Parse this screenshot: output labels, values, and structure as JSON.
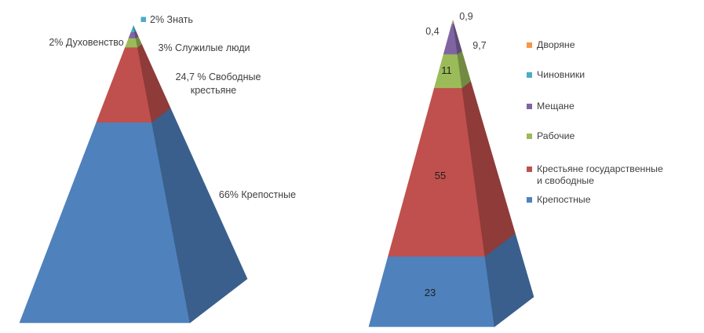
{
  "page": {
    "background": "#ffffff",
    "text_color": "#3F3F3F",
    "inside_label_color": "#1F1F1F"
  },
  "chart_data": [
    {
      "type": "pyramid_3d",
      "title": "",
      "description": "3D pyramid of social estates, segments top to bottom",
      "legend_position": "none",
      "unit": "%",
      "segments": [
        {
          "name": "Знать",
          "value": 2,
          "color": "#4BACC6",
          "label": "2% Знать",
          "label_marker": true
        },
        {
          "name": "Духовенство",
          "value": 2,
          "color": "#8064A2",
          "label": "2% Духовенство"
        },
        {
          "name": "Служилые люди",
          "value": 3,
          "color": "#9BBB59",
          "label": "3% Служилые люди"
        },
        {
          "name": "Свободные крестьяне",
          "value": 24.7,
          "color": "#C0504D",
          "label": "24,7 % Свободные крестьяне",
          "label_lines": [
            "24,7 % Свободные",
            "крестьяне"
          ]
        },
        {
          "name": "Крепостные",
          "value": 66,
          "color": "#4F81BD",
          "label": "66% Крепостные"
        }
      ]
    },
    {
      "type": "pyramid_3d",
      "title": "",
      "description": "3D pyramid of social groups with value labels, legend at right",
      "legend_position": "right",
      "segments": [
        {
          "name": "Дворяне",
          "value": 0.9,
          "color": "#F79646",
          "label": "0,9"
        },
        {
          "name": "Чиновники",
          "value": 0.4,
          "color": "#4BACC6",
          "label": "0,4"
        },
        {
          "name": "Мещане",
          "value": 9.7,
          "color": "#8064A2",
          "label": "9,7"
        },
        {
          "name": "Рабочие",
          "value": 11,
          "color": "#9BBB59",
          "label": "11"
        },
        {
          "name": "Крестьяне государственные и свободные",
          "value": 55,
          "color": "#C0504D",
          "label": "55"
        },
        {
          "name": "Крепостные",
          "value": 23,
          "color": "#4F81BD",
          "label": "23"
        }
      ],
      "legend": [
        "Дворяне",
        "Чиновники",
        "Мещане",
        "Рабочие",
        "Крестьяне государственные и свободные",
        "Крепостные"
      ]
    }
  ]
}
